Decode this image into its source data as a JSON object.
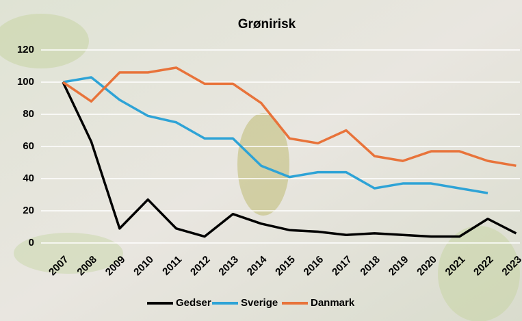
{
  "chart_data": {
    "type": "line",
    "title": "Grønirisk",
    "categories": [
      "2007",
      "2008",
      "2009",
      "2010",
      "2011",
      "2012",
      "2013",
      "2014",
      "2015",
      "2016",
      "2017",
      "2018",
      "2019",
      "2020",
      "2021",
      "2022",
      "2023"
    ],
    "series": [
      {
        "name": "Gedser",
        "color": "#000000",
        "values": [
          100,
          63,
          9,
          27,
          9,
          4,
          18,
          12,
          8,
          7,
          5,
          6,
          5,
          4,
          4,
          15,
          6
        ]
      },
      {
        "name": "Sverige",
        "color": "#2ea3d6",
        "values": [
          100,
          103,
          89,
          79,
          75,
          65,
          65,
          48,
          41,
          44,
          44,
          34,
          37,
          37,
          34,
          31,
          null
        ]
      },
      {
        "name": "Danmark",
        "color": "#e8733a",
        "values": [
          100,
          88,
          106,
          106,
          109,
          99,
          99,
          87,
          65,
          62,
          70,
          54,
          51,
          57,
          57,
          51,
          48
        ]
      }
    ],
    "ylim": [
      0,
      120
    ],
    "yticks": [
      0,
      20,
      40,
      60,
      80,
      100,
      120
    ],
    "grid": true,
    "legend": "bottom"
  }
}
